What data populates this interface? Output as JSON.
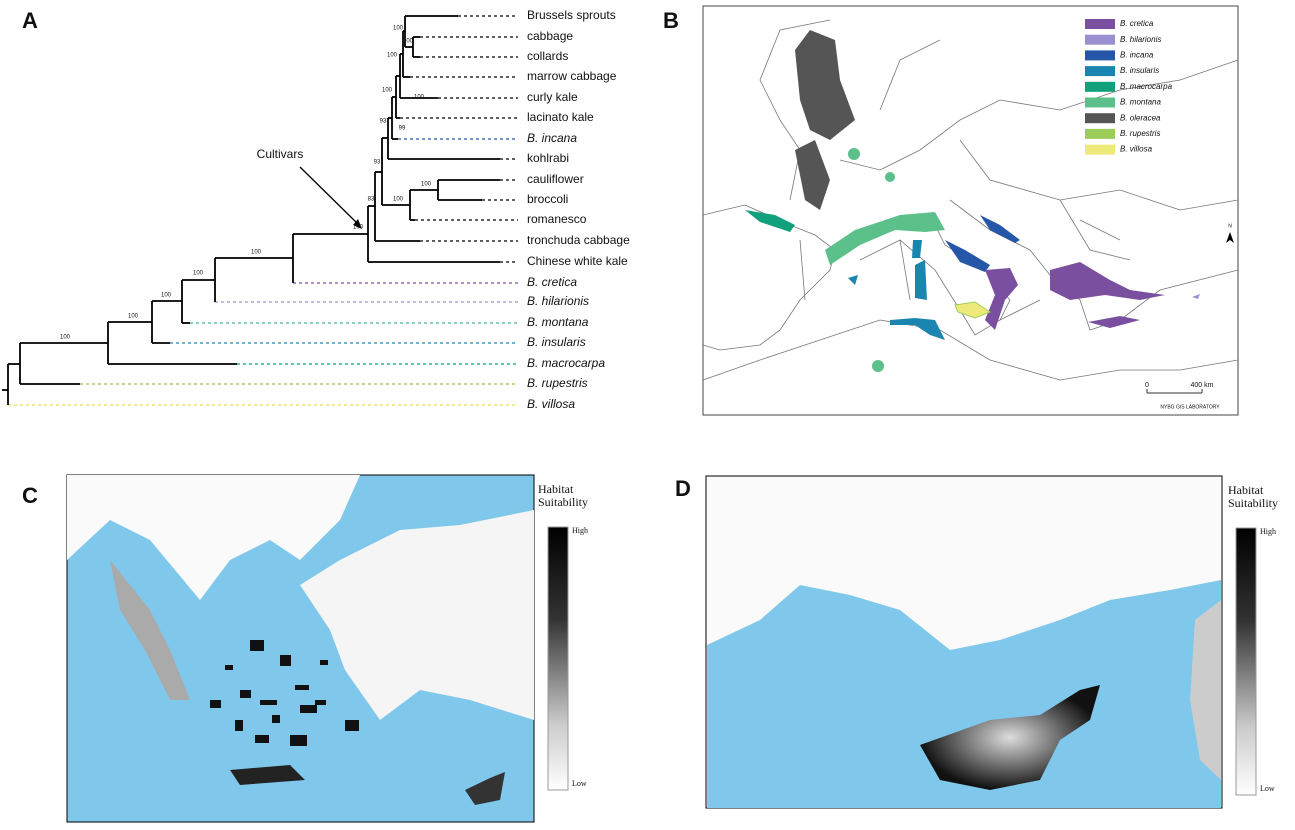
{
  "panel_labels": [
    "A",
    "B",
    "C",
    "D"
  ],
  "tree": {
    "leaves": [
      "Brussels sprouts",
      "cabbage",
      "collards",
      "marrow cabbage",
      "curly kale",
      "lacinato kale",
      "B. incana",
      "kohlrabi",
      "cauliflower",
      "broccoli",
      "romanesco",
      "tronchuda cabbage",
      "Chinese white kale",
      "B. cretica",
      "B. hilarionis",
      "B. montana",
      "B. insularis",
      "B. macrocarpa",
      "B. rupestris",
      "B. villosa"
    ],
    "support": [
      100,
      100,
      100,
      100,
      100,
      93,
      99,
      93,
      100,
      100,
      83,
      100,
      100,
      100,
      100,
      100,
      100
    ],
    "annotation": "Cultivars"
  },
  "map": {
    "legend": [
      "B. cretica",
      "B. hilarionis",
      "B. incana",
      "B. insularis",
      "B. macrocarpa",
      "B. montana",
      "B. oleracea",
      "B. rupestris",
      "B. villosa"
    ],
    "north": "N",
    "scale_start": "0",
    "scale_end": "400 km",
    "credit": "NYBG GIS LABORATORY"
  },
  "habitat_maps": [
    {
      "title_lines": [
        "Habitat",
        "Suitability"
      ],
      "high": "High",
      "low": "Low"
    },
    {
      "title_lines": [
        "Habitat",
        "Suitability"
      ],
      "high": "High",
      "low": "Low"
    }
  ]
}
